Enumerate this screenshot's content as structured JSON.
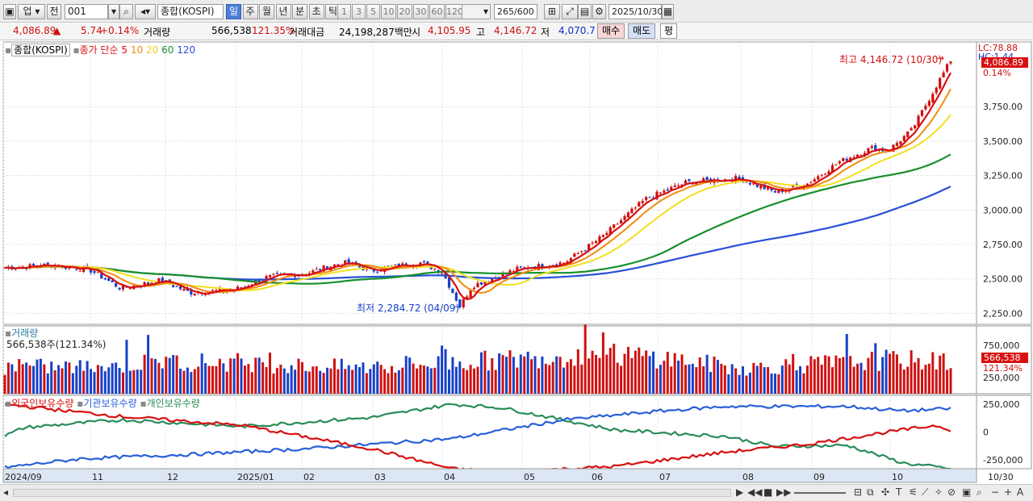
{
  "toolbar": {
    "market_select": "업",
    "prev_label": "전",
    "code": "001",
    "name": "종합(KOSPI)",
    "periods": [
      "일",
      "주",
      "월",
      "년",
      "분",
      "초",
      "틱"
    ],
    "selected_period": "일",
    "intervals": [
      "1",
      "3",
      "5",
      "10",
      "20",
      "30",
      "60",
      "120"
    ],
    "count": "265",
    "count_total": "/600",
    "date": "2025/10/30"
  },
  "info": {
    "price": "4,086.89",
    "arrow": "▲",
    "change": "5.74",
    "change_pct": "+0.14%",
    "volume_label": "거래량",
    "volume": "566,538",
    "volume_pct": "121.35%",
    "amount_label": "거래대금",
    "amount": "24,198,287백만",
    "open_label": "시",
    "open": "4,105.95",
    "high_label": "고",
    "high": "4,146.72",
    "low_label": "저",
    "low": "4,070.7",
    "buy_label": "매수",
    "sell_label": "매도",
    "flat_label": "평"
  },
  "price_panel": {
    "legend_name": "종합(KOSPI)",
    "legend_ma": "종가 단순 5",
    "ma_periods": [
      "10",
      "20",
      "60",
      "120"
    ],
    "lc": "LC:78.88",
    "hc": "HC:1.44",
    "last_value": "4,086.89",
    "last_pct": "0.14%",
    "y_ticks": [
      "3,750.00",
      "3,500.00",
      "3,250.00",
      "3,000.00",
      "2,750.00",
      "2,500.00",
      "2,250.00"
    ],
    "high_note": "최고 4,146.72 (10/30)",
    "low_note": "최저 2,284.72 (04/09)"
  },
  "volume_panel": {
    "legend": "거래량",
    "value_text": "566,538주(121.34%)",
    "y_ticks": [
      "750,000",
      "250,000"
    ],
    "last_value": "566,538",
    "last_pct": "121.34%"
  },
  "holding_panel": {
    "legend": [
      "외국인보유수량",
      "기관보유수량",
      "개인보유수량"
    ],
    "y_ticks": [
      "250,000",
      "0",
      "-250,000"
    ]
  },
  "x_axis": {
    "labels": [
      "2024/09",
      "11",
      "12",
      "2025/01",
      "02",
      "03",
      "04",
      "05",
      "06",
      "07",
      "08",
      "09",
      "10"
    ],
    "last_label": "10/30"
  },
  "colors": {
    "up": "#d01010",
    "down": "#1840c8",
    "ma5": "#d81010",
    "ma10": "#f08c10",
    "ma20": "#f0e020",
    "ma60": "#18902c",
    "ma120": "#2850d8",
    "foreign": "#d81010",
    "institution": "#2860d8",
    "individual": "#2a8c5a"
  },
  "chart_data": {
    "type": "line",
    "title": "종합(KOSPI)",
    "x": [
      "2024/09",
      "11",
      "12",
      "2025/01",
      "02",
      "03",
      "04",
      "05",
      "06",
      "07",
      "08",
      "09",
      "10",
      "10/30"
    ],
    "series": [
      {
        "name": "종합(KOSPI)",
        "values": [
          2600,
          2570,
          2450,
          2430,
          2510,
          2580,
          2500,
          2580,
          2740,
          3120,
          3200,
          3280,
          3650,
          4087
        ]
      },
      {
        "name": "종가 단순 5",
        "values": [
          2610,
          2575,
          2460,
          2440,
          2520,
          2590,
          2380,
          2590,
          2720,
          3100,
          3180,
          3230,
          3500,
          4010
        ]
      },
      {
        "name": "60",
        "values": [
          2680,
          2600,
          2560,
          2510,
          2490,
          2530,
          2540,
          2540,
          2580,
          2750,
          3000,
          3100,
          3250,
          3420
        ]
      },
      {
        "name": "120",
        "values": [
          2700,
          2690,
          2640,
          2600,
          2560,
          2540,
          2520,
          2520,
          2530,
          2620,
          2790,
          2900,
          3020,
          3170
        ]
      }
    ],
    "ylim": [
      2170,
      4220
    ],
    "volume": [
      480000,
      470000,
      560000,
      560000,
      490000,
      460000,
      540000,
      620000,
      700000,
      650000,
      450000,
      520000,
      600000,
      566538
    ],
    "holdings": {
      "series": [
        "외국인보유수량",
        "기관보유수량",
        "개인보유수량"
      ],
      "ylim": [
        -330000,
        330000
      ]
    }
  }
}
